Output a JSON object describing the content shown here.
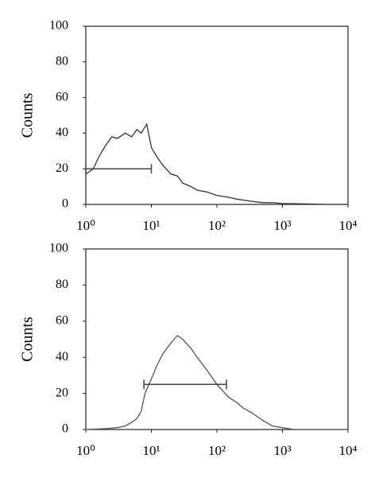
{
  "chart_data": [
    {
      "type": "line",
      "xscale": "log",
      "ylabel": "Counts",
      "grid": false,
      "xlim": [
        1,
        10000
      ],
      "ylim": [
        0,
        100
      ],
      "xticks": [
        {
          "value": 1,
          "label": "10⁰"
        },
        {
          "value": 10,
          "label": "10¹"
        },
        {
          "value": 100,
          "label": "10²"
        },
        {
          "value": 1000,
          "label": "10³"
        },
        {
          "value": 10000,
          "label": "10⁴"
        }
      ],
      "yticks": [
        0,
        20,
        40,
        60,
        80,
        100
      ],
      "series": [
        {
          "color": "#333333",
          "x": [
            1,
            1.3,
            1.6,
            2,
            2.5,
            3,
            4,
            5,
            6,
            7,
            8.5,
            10,
            12,
            15,
            20,
            25,
            30,
            40,
            50,
            70,
            100,
            150,
            200,
            300,
            500,
            700,
            1000,
            2000,
            5000,
            10000
          ],
          "values": [
            17,
            20,
            27,
            33,
            38,
            37,
            40,
            38,
            42,
            40,
            45,
            32,
            27,
            22,
            17,
            16,
            12,
            10,
            8,
            7,
            5,
            4,
            3,
            2,
            1,
            1,
            0.5,
            0.3,
            0,
            0
          ]
        }
      ],
      "gate": {
        "x": [
          1,
          10
        ],
        "y": 20
      }
    },
    {
      "type": "line",
      "xscale": "log",
      "ylabel": "Counts",
      "grid": false,
      "xlim": [
        1,
        10000
      ],
      "ylim": [
        0,
        100
      ],
      "xticks": [
        {
          "value": 1,
          "label": "10⁰"
        },
        {
          "value": 10,
          "label": "10¹"
        },
        {
          "value": 100,
          "label": "10²"
        },
        {
          "value": 1000,
          "label": "10³"
        },
        {
          "value": 10000,
          "label": "10⁴"
        }
      ],
      "yticks": [
        0,
        20,
        40,
        60,
        80,
        100
      ],
      "series": [
        {
          "color": "#555555",
          "x": [
            1,
            2,
            3,
            4,
            5,
            6,
            7,
            8,
            10,
            12,
            15,
            20,
            25,
            30,
            40,
            50,
            70,
            100,
            150,
            200,
            250,
            350,
            500,
            700,
            1000,
            1500,
            3000,
            10000
          ],
          "values": [
            0,
            0.5,
            1,
            2,
            4,
            6,
            10,
            20,
            28,
            35,
            42,
            48,
            52,
            50,
            45,
            40,
            33,
            25,
            18,
            15,
            12,
            9,
            5,
            2,
            1,
            0,
            0,
            0
          ]
        }
      ],
      "gate": {
        "x": [
          7.7,
          140
        ],
        "y": 25
      }
    }
  ]
}
